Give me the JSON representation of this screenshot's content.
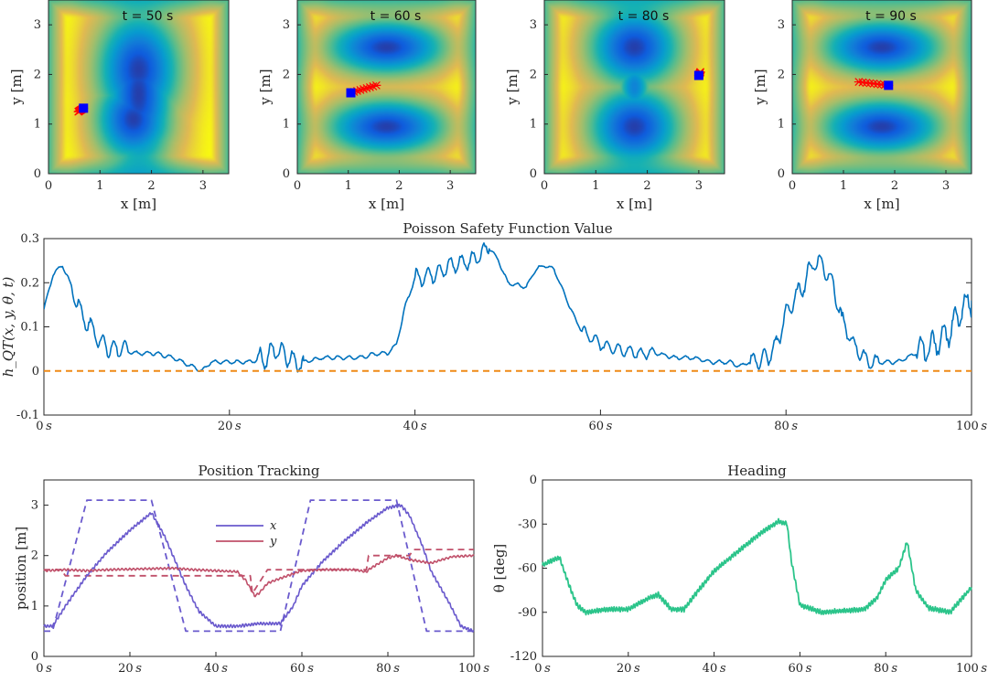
{
  "colors": {
    "safety": "#0072BD",
    "zero_line": "#EDB120",
    "x_color": "#6A5ACD",
    "y_color": "#C0506A",
    "heading": "#2ECC71",
    "robot": "#0000FF",
    "trail": "#FF0000"
  },
  "chart_data": [
    {
      "type": "heatmap",
      "title": "t = 50 s",
      "xlabel": "x [m]",
      "ylabel": "y [m]",
      "xlim": [
        0,
        3.5
      ],
      "ylim": [
        0,
        3.5
      ],
      "xticks": [
        "0",
        "1",
        "2",
        "3"
      ],
      "yticks": [
        "0",
        "1",
        "2",
        "3"
      ],
      "robot": [
        0.68,
        1.32
      ],
      "trail_to": [
        0.58,
        1.25
      ]
    },
    {
      "type": "heatmap",
      "title": "t = 60 s",
      "xlabel": "x [m]",
      "ylabel": "y [m]",
      "xlim": [
        0,
        3.5
      ],
      "ylim": [
        0,
        3.5
      ],
      "xticks": [
        "0",
        "1",
        "2",
        "3"
      ],
      "yticks": [
        "0",
        "1",
        "2",
        "3"
      ],
      "robot": [
        1.05,
        1.63
      ],
      "trail_to": [
        1.55,
        1.78
      ]
    },
    {
      "type": "heatmap",
      "title": "t = 80 s",
      "xlabel": "x [m]",
      "ylabel": "y [m]",
      "xlim": [
        0,
        3.5
      ],
      "ylim": [
        0,
        3.5
      ],
      "xticks": [
        "0",
        "1",
        "2",
        "3"
      ],
      "yticks": [
        "0",
        "1",
        "2",
        "3"
      ],
      "robot": [
        3.0,
        1.98
      ],
      "trail_to": [
        3.03,
        2.05
      ]
    },
    {
      "type": "heatmap",
      "title": "t = 90 s",
      "xlabel": "x [m]",
      "ylabel": "y [m]",
      "xlim": [
        0,
        3.5
      ],
      "ylim": [
        0,
        3.5
      ],
      "xticks": [
        "0",
        "1",
        "2",
        "3"
      ],
      "yticks": [
        "0",
        "1",
        "2",
        "3"
      ],
      "robot": [
        1.88,
        1.78
      ],
      "trail_to": [
        1.3,
        1.85
      ]
    },
    {
      "type": "line",
      "title": "Poisson Safety Function Value",
      "ylabel": "h_QT(x, y, θ, t)",
      "xlim": [
        0,
        100
      ],
      "ylim": [
        -0.1,
        0.3
      ],
      "xticks": [
        "0 s",
        "20 s",
        "40 s",
        "60 s",
        "80 s",
        "100 s"
      ],
      "yticks": [
        "-0.1",
        "0",
        "0.1",
        "0.2",
        "0.3"
      ],
      "series": [
        {
          "name": "h",
          "x": [
            0,
            1,
            2,
            3,
            4,
            5,
            6,
            7,
            8,
            10,
            12,
            14,
            15,
            16,
            17,
            18,
            20,
            22,
            24,
            25,
            26,
            27,
            28,
            30,
            32,
            34,
            36,
            37,
            38,
            39,
            40,
            42,
            44,
            46,
            48,
            49,
            50,
            52,
            53,
            54,
            55,
            56,
            57,
            58,
            60,
            62,
            64,
            66,
            68,
            70,
            72,
            74,
            75,
            76,
            78,
            79,
            80,
            82,
            83,
            84,
            85,
            86,
            87,
            88,
            89,
            90,
            92,
            94,
            96,
            98,
            99,
            100
          ],
          "y": [
            0.14,
            0.22,
            0.24,
            0.19,
            0.13,
            0.1,
            0.07,
            0.05,
            0.05,
            0.04,
            0.04,
            0.03,
            0.02,
            0.01,
            0.0,
            0.02,
            0.02,
            0.02,
            0.03,
            0.05,
            0.04,
            0.02,
            0.02,
            0.03,
            0.03,
            0.03,
            0.04,
            0.04,
            0.06,
            0.15,
            0.21,
            0.22,
            0.24,
            0.25,
            0.28,
            0.25,
            0.2,
            0.19,
            0.23,
            0.24,
            0.23,
            0.18,
            0.13,
            0.09,
            0.06,
            0.05,
            0.04,
            0.04,
            0.03,
            0.03,
            0.02,
            0.02,
            0.01,
            0.02,
            0.03,
            0.06,
            0.13,
            0.2,
            0.25,
            0.24,
            0.2,
            0.12,
            0.07,
            0.04,
            0.02,
            0.02,
            0.02,
            0.04,
            0.06,
            0.1,
            0.14,
            0.16
          ]
        },
        {
          "name": "zero",
          "x": [
            0,
            100
          ],
          "y": [
            0,
            0
          ],
          "dashed": true
        }
      ]
    },
    {
      "type": "line",
      "title": "Position Tracking",
      "ylabel": "position [m]",
      "xlim": [
        0,
        100
      ],
      "ylim": [
        0,
        3.5
      ],
      "xticks": [
        "0 s",
        "20 s",
        "40 s",
        "60 s",
        "80 s",
        "100 s"
      ],
      "yticks": [
        "0",
        "1",
        "2",
        "3"
      ],
      "legend": [
        "x",
        "y"
      ],
      "series": [
        {
          "name": "x",
          "x": [
            0,
            2,
            5,
            10,
            15,
            20,
            25,
            28,
            30,
            33,
            36,
            40,
            45,
            50,
            55,
            58,
            60,
            65,
            70,
            75,
            80,
            83,
            85,
            88,
            90,
            94,
            97,
            100
          ],
          "y": [
            0.6,
            0.6,
            1.0,
            1.6,
            2.1,
            2.5,
            2.85,
            2.4,
            2.0,
            1.4,
            0.9,
            0.6,
            0.6,
            0.65,
            0.65,
            1.0,
            1.4,
            1.9,
            2.3,
            2.65,
            2.95,
            3.0,
            2.8,
            2.2,
            1.7,
            1.1,
            0.6,
            0.5
          ]
        },
        {
          "name": "x_ref",
          "dashed": true,
          "x": [
            0,
            2,
            10,
            25,
            33,
            50,
            55,
            62,
            80,
            82,
            89,
            100
          ],
          "y": [
            0.5,
            0.5,
            3.1,
            3.1,
            0.5,
            0.5,
            0.5,
            3.1,
            3.1,
            3.1,
            0.5,
            0.5
          ]
        },
        {
          "name": "y",
          "x": [
            0,
            5,
            10,
            15,
            20,
            30,
            35,
            40,
            45,
            47,
            49,
            50,
            52,
            55,
            60,
            65,
            70,
            72,
            75,
            76,
            78,
            80,
            82,
            85,
            90,
            95,
            100
          ],
          "y": [
            1.7,
            1.72,
            1.7,
            1.72,
            1.73,
            1.75,
            1.72,
            1.7,
            1.68,
            1.5,
            1.2,
            1.25,
            1.45,
            1.55,
            1.7,
            1.72,
            1.72,
            1.72,
            1.68,
            1.75,
            1.85,
            1.95,
            2.0,
            1.92,
            1.85,
            1.98,
            2.0
          ]
        },
        {
          "name": "y_ref",
          "dashed": true,
          "x": [
            0,
            4,
            5,
            48,
            48.5,
            52,
            75,
            75.5,
            85,
            86,
            100
          ],
          "y": [
            1.72,
            1.72,
            1.6,
            1.6,
            1.25,
            1.72,
            1.72,
            2.0,
            2.0,
            2.12,
            2.12
          ]
        }
      ]
    },
    {
      "type": "line",
      "title": "Heading",
      "ylabel": "θ [deg]",
      "xlim": [
        0,
        100
      ],
      "ylim": [
        -120,
        0
      ],
      "xticks": [
        "0 s",
        "20 s",
        "40 s",
        "60 s",
        "80 s",
        "100 s"
      ],
      "yticks": [
        "0",
        "-30",
        "-60",
        "-90",
        "-120"
      ],
      "series": [
        {
          "name": "theta",
          "x": [
            0,
            2,
            4,
            6,
            8,
            10,
            15,
            20,
            25,
            27,
            30,
            33,
            35,
            40,
            45,
            50,
            55,
            57,
            58,
            60,
            65,
            70,
            75,
            78,
            80,
            83,
            85,
            87,
            90,
            95,
            100
          ],
          "y": [
            -58,
            -55,
            -53,
            -70,
            -85,
            -90,
            -88,
            -88,
            -80,
            -78,
            -88,
            -88,
            -80,
            -62,
            -50,
            -38,
            -28,
            -30,
            -55,
            -85,
            -90,
            -89,
            -88,
            -80,
            -68,
            -60,
            -42,
            -75,
            -87,
            -90,
            -73
          ]
        }
      ]
    }
  ]
}
